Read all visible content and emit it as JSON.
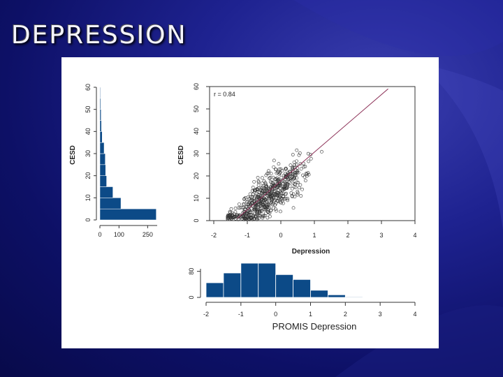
{
  "slide": {
    "title": "DEPRESSION"
  },
  "colors": {
    "bar_fill": "#0c4a87",
    "point": "#333333",
    "fit_line": "#8b2f56",
    "panel": "#ffffff"
  },
  "chart_data": [
    {
      "type": "bar",
      "orientation": "horizontal",
      "title": "",
      "ylabel": "CESD",
      "xlabel": "",
      "y_ticks": [
        "0",
        "10",
        "20",
        "30",
        "40",
        "50",
        "60"
      ],
      "x_ticks": [
        "0",
        "100",
        "250"
      ],
      "ylim": [
        0,
        60
      ],
      "xlim": [
        0,
        300
      ],
      "bin_width": 5,
      "bin_starts": [
        0,
        5,
        10,
        15,
        20,
        25,
        30,
        35,
        40,
        45,
        50,
        55
      ],
      "values": [
        295,
        110,
        68,
        35,
        30,
        28,
        22,
        12,
        8,
        6,
        4,
        2
      ]
    },
    {
      "type": "scatter",
      "title": "",
      "xlabel": "Depression",
      "ylabel": "CESD",
      "x_ticks": [
        "-2",
        "-1",
        "0",
        "1",
        "2",
        "3",
        "4"
      ],
      "y_ticks": [
        "0",
        "10",
        "20",
        "30",
        "40",
        "50",
        "60"
      ],
      "xlim": [
        -2,
        4
      ],
      "ylim": [
        0,
        60
      ],
      "annotation": "r = 0.84",
      "fit_line": {
        "x": [
          -1.3,
          3.2
        ],
        "y": [
          1,
          59
        ]
      },
      "points_description": "several hundred subject scores clustered from (-1.5,0) to (3.5,55)"
    },
    {
      "type": "bar",
      "title": "",
      "xlabel": "PROMIS Depression",
      "ylabel": "",
      "y_ticks": [
        "0",
        "80"
      ],
      "x_ticks": [
        "-2",
        "-1",
        "0",
        "1",
        "2",
        "3",
        "4"
      ],
      "xlim": [
        -2,
        4
      ],
      "ylim": [
        0,
        120
      ],
      "bin_width": 0.5,
      "bin_starts": [
        -2.0,
        -1.5,
        -1.0,
        -0.5,
        0.0,
        0.5,
        1.0,
        1.5,
        2.0
      ],
      "values": [
        45,
        75,
        105,
        105,
        70,
        55,
        22,
        8,
        2
      ]
    }
  ]
}
